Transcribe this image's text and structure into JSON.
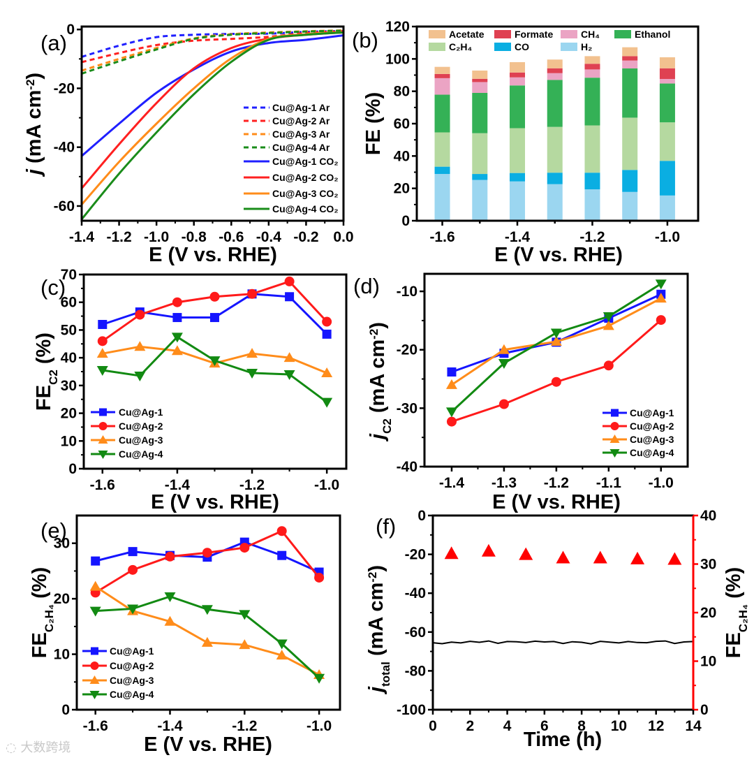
{
  "figure": {
    "panel_labels": [
      "(a)",
      "(b)",
      "(c)",
      "(d)",
      "(e)",
      "(f)"
    ],
    "watermark": "大数跨境"
  },
  "chart_data": [
    {
      "type": "line",
      "xlabel": [
        {
          "t": "E (V vs. RHE)"
        }
      ],
      "ylabel": [
        {
          "t": "j",
          "s": "i"
        },
        {
          "t": " (mA cm"
        },
        {
          "t": "-2",
          "s": "sup"
        },
        {
          "t": ")"
        }
      ],
      "xlim": [
        -1.4,
        0
      ],
      "ylim": [
        -65,
        1
      ],
      "xticks": [
        -1.4,
        -1.2,
        -1.0,
        -0.8,
        -0.6,
        -0.4,
        -0.2,
        0.0
      ],
      "xtick_labels": [
        "-1.4",
        "-1.2",
        "-1.0",
        "-0.8",
        "-0.6",
        "-0.4",
        "-0.2",
        "0.0"
      ],
      "yticks": [
        0,
        -20,
        -40,
        -60
      ],
      "ytick_labels": [
        "0",
        "-20",
        "-40",
        "-60"
      ],
      "legend_position": "bottom-right",
      "x": [
        -1.4,
        -1.2,
        -1.0,
        -0.8,
        -0.6,
        -0.4,
        -0.2,
        0.0
      ],
      "series": [
        {
          "name": "Cu@Ag-1 Ar",
          "color": "#1f1fff",
          "dashed": true,
          "y": [
            -9.3,
            -5.5,
            -2.6,
            -1.8,
            -1.5,
            -1.4,
            -0.8,
            -0.5
          ]
        },
        {
          "name": "Cu@Ag-2 Ar",
          "color": "#ff2020",
          "dashed": true,
          "y": [
            -11.1,
            -8.0,
            -5.3,
            -3.8,
            -3.2,
            -2.5,
            -1.2,
            -0.6
          ]
        },
        {
          "name": "Cu@Ag-3 Ar",
          "color": "#ff8c1a",
          "dashed": true,
          "y": [
            -14.0,
            -10.0,
            -6.3,
            -3.0,
            -1.6,
            -1.0,
            -0.6,
            -0.3
          ]
        },
        {
          "name": "Cu@Ag-4 Ar",
          "color": "#1a8c1a",
          "dashed": true,
          "y": [
            -15.0,
            -10.8,
            -6.8,
            -3.2,
            -1.8,
            -1.2,
            -0.7,
            -0.4
          ]
        },
        {
          "name": "Cu@Ag-1 CO₂",
          "color": "#1f1fff",
          "dashed": false,
          "y": [
            -43.0,
            -32.0,
            -21.5,
            -13.6,
            -7.5,
            -4.6,
            -3.5,
            -2.0
          ]
        },
        {
          "name": "Cu@Ag-2 CO₂",
          "color": "#ff2020",
          "dashed": false,
          "y": [
            -54.0,
            -39.0,
            -25.0,
            -13.2,
            -6.3,
            -3.1,
            -1.8,
            -1.0
          ]
        },
        {
          "name": "Cu@Ag-3 CO₂",
          "color": "#ff8c1a",
          "dashed": false,
          "y": [
            -59.5,
            -45.0,
            -32.0,
            -20.0,
            -9.8,
            -3.2,
            -1.6,
            -1.0
          ]
        },
        {
          "name": "Cu@Ag-4 CO₂",
          "color": "#1a8c1a",
          "dashed": false,
          "y": [
            -64.5,
            -49.0,
            -35.0,
            -22.0,
            -11.0,
            -3.5,
            -1.8,
            -1.0
          ]
        }
      ]
    },
    {
      "type": "bar",
      "stacked": true,
      "xlabel": [
        {
          "t": "E (V vs. RHE)"
        }
      ],
      "ylabel": [
        {
          "t": "FE (%)"
        }
      ],
      "ylim": [
        0,
        120
      ],
      "yticks": [
        0,
        20,
        40,
        60,
        80,
        100,
        120
      ],
      "ytick_labels": [
        "0",
        "20",
        "40",
        "60",
        "80",
        "100",
        "120"
      ],
      "categories": [
        "-1.6",
        "-1.5",
        "-1.4",
        "-1.3",
        "-1.2",
        "-1.1",
        "-1.0"
      ],
      "xtick_labels": [
        "-1.6",
        "",
        "-1.4",
        "",
        "-1.2",
        "",
        "-1.0"
      ],
      "legend_position": "top",
      "series": [
        {
          "name": "H₂",
          "color": "#9bd6f0",
          "values": [
            28.9,
            25.2,
            24.3,
            22.6,
            19.4,
            17.8,
            15.6
          ]
        },
        {
          "name": "CO",
          "color": "#0aaee2",
          "values": [
            4.5,
            3.7,
            5.2,
            7.1,
            10.3,
            13.6,
            21.4
          ]
        },
        {
          "name": "C₂H₄",
          "color": "#b5d9a0",
          "values": [
            21.2,
            25.2,
            27.7,
            28.3,
            29.2,
            32.3,
            23.8
          ]
        },
        {
          "name": "Ethanol",
          "color": "#34b156",
          "values": [
            23.3,
            24.9,
            26.4,
            29.0,
            29.5,
            30.4,
            24.0
          ]
        },
        {
          "name": "CH₄",
          "color": "#eba4c4",
          "values": [
            10.2,
            6.7,
            5.0,
            4.2,
            5.1,
            4.9,
            2.8
          ]
        },
        {
          "name": "Formate",
          "color": "#df4152",
          "values": [
            2.6,
            2.0,
            3.0,
            3.0,
            3.5,
            2.7,
            6.6
          ]
        },
        {
          "name": "Acetate",
          "color": "#f2c18f",
          "values": [
            4.4,
            5.1,
            6.4,
            5.4,
            4.7,
            5.5,
            6.8
          ]
        }
      ]
    },
    {
      "type": "line",
      "xlabel": [
        {
          "t": "E (V vs. RHE)"
        }
      ],
      "ylabel": [
        {
          "t": "FE"
        },
        {
          "t": "C2",
          "s": "sub"
        },
        {
          "t": " (%)"
        }
      ],
      "xlim": [
        -1.65,
        -0.948
      ],
      "ylim": [
        0,
        70
      ],
      "xticks": [
        -1.6,
        -1.4,
        -1.2,
        -1.0
      ],
      "xtick_labels": [
        "-1.6",
        "-1.4",
        "-1.2",
        "-1.0"
      ],
      "yticks": [
        0,
        10,
        20,
        30,
        40,
        50,
        60,
        70
      ],
      "ytick_labels": [
        "0",
        "10",
        "20",
        "30",
        "40",
        "50",
        "60",
        "70"
      ],
      "legend_position": "bottom-left",
      "x": [
        -1.6,
        -1.5,
        -1.4,
        -1.3,
        -1.2,
        -1.1,
        -1.0
      ],
      "series": [
        {
          "name": "Cu@Ag-1",
          "color": "#1515ff",
          "marker": "square",
          "y": [
            52.0,
            56.5,
            54.5,
            54.5,
            63.0,
            62.0,
            48.5
          ]
        },
        {
          "name": "Cu@Ag-2",
          "color": "#ff1a1a",
          "marker": "circle",
          "y": [
            46.0,
            55.5,
            60.0,
            62.0,
            63.0,
            67.5,
            53.0
          ]
        },
        {
          "name": "Cu@Ag-3",
          "color": "#ff8c1a",
          "marker": "triangle-up",
          "y": [
            41.5,
            44.0,
            42.5,
            38.0,
            41.5,
            40.0,
            34.5
          ]
        },
        {
          "name": "Cu@Ag-4",
          "color": "#128a12",
          "marker": "triangle-down",
          "y": [
            35.5,
            33.5,
            47.5,
            39.0,
            34.5,
            34.0,
            24.0
          ]
        }
      ]
    },
    {
      "type": "line",
      "xlabel": [
        {
          "t": "E (V vs. RHE)"
        }
      ],
      "ylabel": [
        {
          "t": "j",
          "s": "i"
        },
        {
          "t": "C2",
          "s": "sub"
        },
        {
          "t": " (mA cm"
        },
        {
          "t": "-2",
          "s": "sup"
        },
        {
          "t": ")"
        }
      ],
      "xlim": [
        -1.452,
        -0.949
      ],
      "ylim": [
        -40,
        -7
      ],
      "xticks": [
        -1.4,
        -1.3,
        -1.2,
        -1.1,
        -1.0
      ],
      "xtick_labels": [
        "-1.4",
        "-1.3",
        "-1.2",
        "-1.1",
        "-1.0"
      ],
      "yticks": [
        -10,
        -20,
        -30,
        -40
      ],
      "ytick_labels": [
        "-10",
        "-20",
        "-30",
        "-40"
      ],
      "legend_position": "bottom-right",
      "x": [
        -1.4,
        -1.3,
        -1.2,
        -1.1,
        -1.0
      ],
      "series": [
        {
          "name": "Cu@Ag-1",
          "color": "#1515ff",
          "marker": "square",
          "y": [
            -23.8,
            -20.6,
            -18.7,
            -14.6,
            -10.5
          ]
        },
        {
          "name": "Cu@Ag-2",
          "color": "#ff1a1a",
          "marker": "circle",
          "y": [
            -32.3,
            -29.3,
            -25.5,
            -22.7,
            -14.9
          ]
        },
        {
          "name": "Cu@Ag-3",
          "color": "#ff8c1a",
          "marker": "triangle-up",
          "y": [
            -26.0,
            -20.0,
            -18.6,
            -15.9,
            -11.2
          ]
        },
        {
          "name": "Cu@Ag-4",
          "color": "#128a12",
          "marker": "triangle-down",
          "y": [
            -30.6,
            -22.3,
            -17.1,
            -14.3,
            -8.7
          ]
        }
      ]
    },
    {
      "type": "line",
      "xlabel": [
        {
          "t": "E (V vs. RHE)"
        }
      ],
      "ylabel": [
        {
          "t": "FE"
        },
        {
          "t": "C₂H₄",
          "s": "sub"
        },
        {
          "t": " (%)"
        }
      ],
      "xlim": [
        -1.65,
        -0.944
      ],
      "ylim": [
        0,
        35
      ],
      "xticks": [
        -1.6,
        -1.4,
        -1.2,
        -1.0
      ],
      "xtick_labels": [
        "-1.6",
        "-1.4",
        "-1.2",
        "-1.0"
      ],
      "yticks": [
        0,
        10,
        20,
        30
      ],
      "ytick_labels": [
        "0",
        "10",
        "20",
        "30"
      ],
      "legend_position": "bottom-left",
      "x": [
        -1.6,
        -1.5,
        -1.4,
        -1.3,
        -1.2,
        -1.1,
        -1.0
      ],
      "series": [
        {
          "name": "Cu@Ag-1",
          "color": "#1515ff",
          "marker": "square",
          "y": [
            26.8,
            28.5,
            27.8,
            27.5,
            30.2,
            27.8,
            24.8
          ]
        },
        {
          "name": "Cu@Ag-2",
          "color": "#ff1a1a",
          "marker": "circle",
          "y": [
            21.1,
            25.2,
            27.6,
            28.3,
            29.2,
            32.2,
            23.8
          ]
        },
        {
          "name": "Cu@Ag-3",
          "color": "#ff8c1a",
          "marker": "triangle-up",
          "y": [
            22.2,
            17.8,
            15.9,
            12.1,
            11.7,
            9.8,
            6.3
          ]
        },
        {
          "name": "Cu@Ag-4",
          "color": "#128a12",
          "marker": "triangle-down",
          "y": [
            17.8,
            18.2,
            20.4,
            18.1,
            17.2,
            11.9,
            5.7
          ]
        }
      ]
    },
    {
      "type": "line",
      "xlabel": [
        {
          "t": "Time (h)"
        }
      ],
      "ylabel": [
        {
          "t": "j",
          "s": "i"
        },
        {
          "t": "total",
          "s": "sub"
        },
        {
          "t": " (mA cm"
        },
        {
          "t": "-2",
          "s": "sup"
        },
        {
          "t": ")"
        }
      ],
      "ylabel_right": [
        {
          "t": "FE"
        },
        {
          "t": "C₂H₄",
          "s": "sub"
        },
        {
          "t": " (%)"
        }
      ],
      "right_axis_color": "#ff0000",
      "xlim": [
        0,
        14
      ],
      "ylim": [
        -100,
        0
      ],
      "ylim_right": [
        0,
        40
      ],
      "xticks": [
        0,
        2,
        4,
        6,
        8,
        10,
        12,
        14
      ],
      "xtick_labels": [
        "0",
        "2",
        "4",
        "6",
        "8",
        "10",
        "12",
        "14"
      ],
      "yticks": [
        0,
        -20,
        -40,
        -60,
        -80,
        -100
      ],
      "ytick_labels": [
        "0",
        "-20",
        "-40",
        "-60",
        "-80",
        "-100"
      ],
      "yticks_right": [
        0,
        10,
        20,
        30,
        40
      ],
      "ytick_right_labels": [
        "0",
        "10",
        "20",
        "30",
        "40"
      ],
      "current": {
        "name": "j_total",
        "color": "#000000",
        "x": [
          0,
          0.5,
          1,
          1.5,
          2,
          2.5,
          3,
          3.5,
          4,
          4.5,
          5,
          5.5,
          6,
          6.5,
          7,
          7.5,
          8,
          8.5,
          9,
          9.5,
          10,
          10.5,
          11,
          11.5,
          12,
          12.5,
          13,
          13.5,
          14
        ],
        "y": [
          -65.5,
          -66.0,
          -65.2,
          -65.6,
          -64.8,
          -65.3,
          -64.6,
          -65.8,
          -64.9,
          -65.0,
          -65.4,
          -64.7,
          -65.1,
          -64.9,
          -65.9,
          -65.0,
          -65.3,
          -66.1,
          -64.8,
          -65.2,
          -65.6,
          -64.9,
          -65.4,
          -65.5,
          -64.8,
          -64.6,
          -65.9,
          -65.1,
          -64.9
        ]
      },
      "fe": {
        "name": "FE C₂H₄",
        "color": "#ff0000",
        "marker": "triangle-up",
        "x": [
          1,
          3,
          5,
          7,
          9,
          11,
          13
        ],
        "y": [
          32.2,
          32.7,
          32.0,
          31.3,
          31.3,
          31.1,
          31.0
        ]
      }
    }
  ]
}
